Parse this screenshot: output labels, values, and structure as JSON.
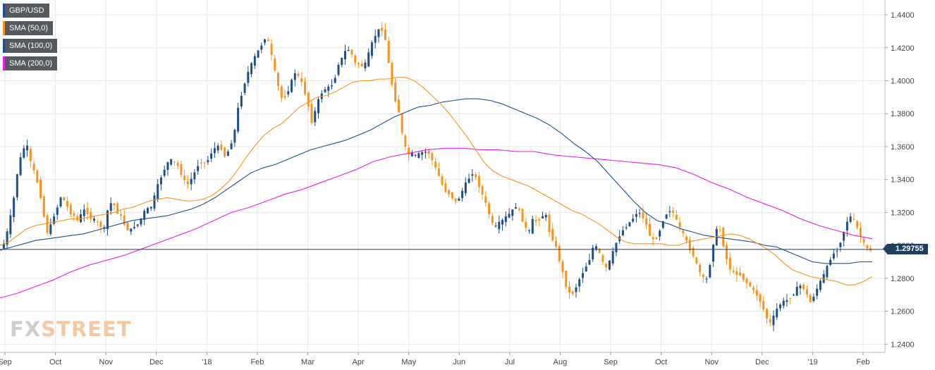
{
  "chart_data": {
    "type": "candlestick",
    "instrument": "GBP/USD",
    "y_ticks": [
      "1.2400",
      "1.2600",
      "1.2800",
      "1.3000",
      "1.3200",
      "1.3400",
      "1.3600",
      "1.3800",
      "1.4000",
      "1.4200",
      "1.4400"
    ],
    "ylim": [
      1.235,
      1.449
    ],
    "x_ticks": [
      "Sep",
      "Oct",
      "Nov",
      "Dec",
      "'18",
      "Feb",
      "Mar",
      "Apr",
      "May",
      "Jun",
      "Jul",
      "Aug",
      "Sep",
      "Oct",
      "Nov",
      "Dec",
      "'19",
      "Feb"
    ],
    "current_price": 1.29755,
    "current_price_label": "1.29755",
    "legend": [
      {
        "label": "GBP/USD",
        "color": "#1f4f8a"
      },
      {
        "label": "SMA (50,0)",
        "color": "#f7941d"
      },
      {
        "label": "SMA (100,0)",
        "color": "#1f4f8a"
      },
      {
        "label": "SMA (200,0)",
        "color": "#e620e6"
      }
    ],
    "price_path": [
      1.298,
      1.302,
      1.313,
      1.327,
      1.346,
      1.357,
      1.362,
      1.35,
      1.343,
      1.334,
      1.318,
      1.306,
      1.316,
      1.322,
      1.33,
      1.326,
      1.32,
      1.318,
      1.314,
      1.322,
      1.32,
      1.316,
      1.315,
      1.312,
      1.31,
      1.325,
      1.326,
      1.32,
      1.317,
      1.31,
      1.309,
      1.312,
      1.313,
      1.32,
      1.322,
      1.324,
      1.334,
      1.341,
      1.347,
      1.352,
      1.351,
      1.348,
      1.342,
      1.336,
      1.34,
      1.345,
      1.351,
      1.35,
      1.352,
      1.358,
      1.36,
      1.359,
      1.353,
      1.36,
      1.368,
      1.385,
      1.395,
      1.404,
      1.41,
      1.416,
      1.42,
      1.426,
      1.423,
      1.41,
      1.398,
      1.389,
      1.391,
      1.398,
      1.405,
      1.402,
      1.396,
      1.386,
      1.374,
      1.385,
      1.392,
      1.395,
      1.396,
      1.399,
      1.41,
      1.414,
      1.42,
      1.417,
      1.41,
      1.41,
      1.408,
      1.416,
      1.424,
      1.43,
      1.432,
      1.424,
      1.404,
      1.39,
      1.381,
      1.364,
      1.355,
      1.356,
      1.354,
      1.356,
      1.357,
      1.356,
      1.35,
      1.344,
      1.337,
      1.332,
      1.331,
      1.326,
      1.329,
      1.335,
      1.34,
      1.344,
      1.34,
      1.333,
      1.326,
      1.318,
      1.31,
      1.313,
      1.315,
      1.318,
      1.32,
      1.324,
      1.32,
      1.312,
      1.307,
      1.316,
      1.314,
      1.318,
      1.318,
      1.306,
      1.302,
      1.292,
      1.282,
      1.272,
      1.27,
      1.275,
      1.281,
      1.286,
      1.291,
      1.3,
      1.298,
      1.29,
      1.286,
      1.292,
      1.3,
      1.306,
      1.31,
      1.313,
      1.316,
      1.32,
      1.319,
      1.314,
      1.306,
      1.302,
      1.307,
      1.315,
      1.32,
      1.322,
      1.316,
      1.31,
      1.305,
      1.299,
      1.294,
      1.287,
      1.281,
      1.278,
      1.29,
      1.307,
      1.312,
      1.3,
      1.289,
      1.283,
      1.283,
      1.282,
      1.278,
      1.276,
      1.272,
      1.269,
      1.263,
      1.256,
      1.252,
      1.26,
      1.264,
      1.266,
      1.267,
      1.27,
      1.274,
      1.276,
      1.272,
      1.265,
      1.27,
      1.276,
      1.281,
      1.287,
      1.294,
      1.296,
      1.302,
      1.31,
      1.318,
      1.316,
      1.31,
      1.303,
      1.298,
      1.297
    ],
    "sma50_path": [
      1.3,
      1.302,
      1.306,
      1.31,
      1.312,
      1.313,
      1.314,
      1.315,
      1.316,
      1.316,
      1.317,
      1.318,
      1.319,
      1.32,
      1.322,
      1.323,
      1.325,
      1.327,
      1.328,
      1.329,
      1.328,
      1.327,
      1.327,
      1.328,
      1.33,
      1.334,
      1.339,
      1.346,
      1.354,
      1.361,
      1.367,
      1.371,
      1.374,
      1.379,
      1.384,
      1.387,
      1.39,
      1.391,
      1.393,
      1.396,
      1.399,
      1.4,
      1.4,
      1.401,
      1.401,
      1.402,
      1.402,
      1.4,
      1.396,
      1.391,
      1.386,
      1.38,
      1.373,
      1.366,
      1.358,
      1.35,
      1.345,
      1.342,
      1.34,
      1.338,
      1.336,
      1.333,
      1.33,
      1.327,
      1.324,
      1.321,
      1.319,
      1.316,
      1.313,
      1.309,
      1.305,
      1.302,
      1.301,
      1.301,
      1.301,
      1.301,
      1.3,
      1.3,
      1.302,
      1.303,
      1.304,
      1.305,
      1.306,
      1.307,
      1.306,
      1.304,
      1.301,
      1.298,
      1.294,
      1.289,
      1.285,
      1.283,
      1.281,
      1.28,
      1.279,
      1.278,
      1.276,
      1.276,
      1.278,
      1.281
    ],
    "sma100_path": [
      1.297,
      1.299,
      1.301,
      1.303,
      1.304,
      1.305,
      1.306,
      1.307,
      1.309,
      1.311,
      1.313,
      1.315,
      1.316,
      1.317,
      1.318,
      1.32,
      1.322,
      1.325,
      1.329,
      1.334,
      1.339,
      1.344,
      1.347,
      1.349,
      1.352,
      1.355,
      1.358,
      1.36,
      1.362,
      1.364,
      1.367,
      1.37,
      1.374,
      1.378,
      1.381,
      1.384,
      1.385,
      1.387,
      1.388,
      1.389,
      1.389,
      1.388,
      1.386,
      1.383,
      1.38,
      1.377,
      1.373,
      1.368,
      1.362,
      1.357,
      1.351,
      1.343,
      1.335,
      1.327,
      1.32,
      1.315,
      1.313,
      1.31,
      1.308,
      1.306,
      1.305,
      1.304,
      1.303,
      1.302,
      1.3,
      1.299,
      1.296,
      1.293,
      1.29,
      1.289,
      1.289,
      1.289,
      1.29,
      1.29
    ],
    "sma200_path": [
      1.268,
      1.271,
      1.275,
      1.279,
      1.284,
      1.288,
      1.291,
      1.294,
      1.298,
      1.302,
      1.306,
      1.31,
      1.315,
      1.32,
      1.323,
      1.327,
      1.331,
      1.334,
      1.338,
      1.342,
      1.346,
      1.351,
      1.354,
      1.356,
      1.358,
      1.359,
      1.359,
      1.358,
      1.358,
      1.357,
      1.357,
      1.355,
      1.354,
      1.353,
      1.352,
      1.351,
      1.35,
      1.349,
      1.347,
      1.343,
      1.338,
      1.334,
      1.329,
      1.325,
      1.321,
      1.316,
      1.312,
      1.309,
      1.306,
      1.304
    ]
  },
  "watermark": {
    "fx": "FX",
    "street": "STREET"
  }
}
